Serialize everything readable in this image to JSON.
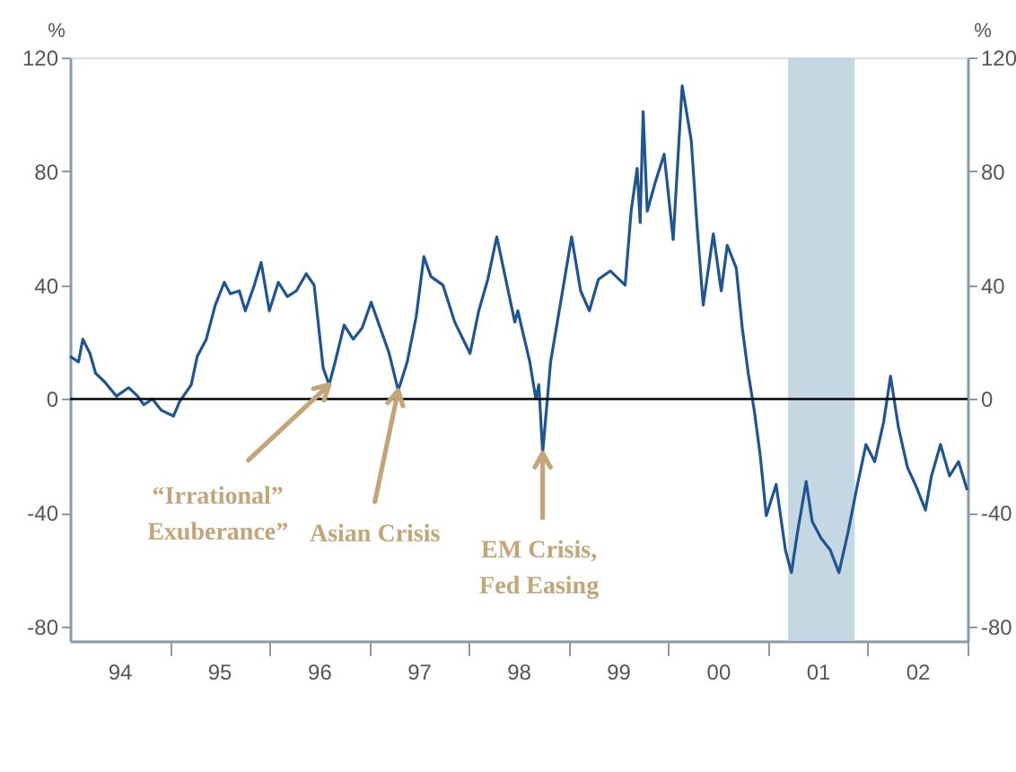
{
  "chart_data": {
    "type": "line",
    "ylabel": "%",
    "y2label": "%",
    "xlim": [
      "1994-01-01",
      "2003-01-01"
    ],
    "xticks": [
      {
        "value": "1994-07-01",
        "label": "94"
      },
      {
        "value": "1995-01-01",
        "label": null
      },
      {
        "value": "1995-07-01",
        "label": "95"
      },
      {
        "value": "1996-01-01",
        "label": null
      },
      {
        "value": "1996-07-01",
        "label": "96"
      },
      {
        "value": "1997-01-01",
        "label": null
      },
      {
        "value": "1997-07-01",
        "label": "97"
      },
      {
        "value": "1998-01-01",
        "label": null
      },
      {
        "value": "1998-07-01",
        "label": "98"
      },
      {
        "value": "1999-01-01",
        "label": null
      },
      {
        "value": "1999-07-01",
        "label": "99"
      },
      {
        "value": "2000-01-01",
        "label": null
      },
      {
        "value": "2000-07-01",
        "label": "00"
      },
      {
        "value": "2001-01-01",
        "label": null
      },
      {
        "value": "2001-07-01",
        "label": "01"
      },
      {
        "value": "2002-01-01",
        "label": null
      },
      {
        "value": "2002-07-01",
        "label": "02"
      },
      {
        "value": "2003-01-01",
        "label": null
      }
    ],
    "ylim": [
      -85,
      120
    ],
    "yticks": [
      -80,
      -40,
      0,
      40,
      80,
      120
    ],
    "y2lim": [
      -85,
      120
    ],
    "y2ticks": [
      -80,
      -40,
      0,
      40,
      80,
      120
    ],
    "grid": false,
    "series": [
      {
        "color": "#1f5591",
        "x": [
          "1994-01-01",
          "1994-02-01",
          "1994-02-17",
          "1994-03-15",
          "1994-04-05",
          "1994-05-08",
          "1994-06-20",
          "1994-08-04",
          "1994-09-06",
          "1994-09-28",
          "1994-10-30",
          "1994-12-02",
          "1995-01-15",
          "1995-02-06",
          "1995-03-21",
          "1995-04-12",
          "1995-05-15",
          "1995-06-17",
          "1995-07-20",
          "1995-08-11",
          "1995-09-13",
          "1995-10-05",
          "1995-11-07",
          "1995-12-02",
          "1996-01-01",
          "1996-02-03",
          "1996-03-07",
          "1996-04-09",
          "1996-05-15",
          "1996-06-13",
          "1996-07-16",
          "1996-08-07",
          "1996-08-29",
          "1996-10-01",
          "1996-11-03",
          "1996-12-06",
          "1997-01-08",
          "1997-02-10",
          "1997-03-15",
          "1997-04-17",
          "1997-05-20",
          "1997-06-22",
          "1997-07-20",
          "1997-08-15",
          "1997-09-28",
          "1997-11-10",
          "1998-01-05",
          "1998-02-06",
          "1998-03-11",
          "1998-04-13",
          "1998-05-16",
          "1998-06-18",
          "1998-06-29",
          "1998-08-12",
          "1998-09-03",
          "1998-09-14",
          "1998-09-28",
          "1998-10-27",
          "1998-12-10",
          "1999-01-12",
          "1999-02-14",
          "1999-03-18",
          "1999-04-20",
          "1999-06-03",
          "1999-07-27",
          "1999-08-18",
          "1999-09-09",
          "1999-09-20",
          "1999-10-01",
          "1999-10-16",
          "1999-11-14",
          "1999-12-17",
          "2000-01-19",
          "2000-02-21",
          "2000-03-25",
          "2000-04-16",
          "2000-05-08",
          "2000-06-14",
          "2000-07-13",
          "2000-08-04",
          "2000-09-06",
          "2000-09-28",
          "2000-10-20",
          "2000-11-11",
          "2000-12-03",
          "2000-12-25",
          "2001-01-30",
          "2001-03-05",
          "2001-03-27",
          "2001-04-18",
          "2001-05-20",
          "2001-06-11",
          "2001-07-14",
          "2001-08-16",
          "2001-09-17",
          "2001-10-20",
          "2001-11-22",
          "2001-12-25",
          "2002-01-26",
          "2002-02-28",
          "2002-03-25",
          "2002-04-23",
          "2002-05-26",
          "2002-06-28",
          "2002-07-31",
          "2002-08-22",
          "2002-09-24",
          "2002-10-27",
          "2002-11-29",
          "2002-12-31"
        ],
        "values": [
          15,
          13,
          21,
          16,
          9,
          6,
          1,
          4,
          1,
          -2,
          0,
          -4,
          -6,
          -1,
          5,
          15,
          21,
          33,
          41,
          37,
          38,
          31,
          40,
          48,
          31,
          41,
          36,
          38,
          44,
          40,
          11,
          5,
          13,
          26,
          21,
          25,
          34,
          25,
          16,
          3,
          13,
          29,
          50,
          43,
          40,
          27,
          16,
          31,
          42,
          57,
          42,
          27,
          31,
          13,
          0,
          5,
          -19,
          13,
          38,
          57,
          38,
          31,
          42,
          45,
          40,
          66,
          81,
          62,
          101,
          66,
          76,
          86,
          56,
          110,
          91,
          60,
          33,
          58,
          38,
          54,
          46,
          25,
          9,
          -4,
          -20,
          -41,
          -30,
          -53,
          -61,
          -47,
          -29,
          -43,
          -49,
          -53,
          -61,
          -47,
          -31,
          -16,
          -22,
          -8,
          8,
          -10,
          -24,
          -31,
          -39,
          -27,
          -16,
          -27,
          -22,
          -32
        ]
      }
    ],
    "ref_lines": [
      {
        "axis": "y",
        "value": 0,
        "color": "#000000",
        "line_style": "solid"
      }
    ],
    "bands": [
      {
        "axis": "x",
        "from": "2001-03-15",
        "to": "2001-11-14",
        "color": "#c5d7e3"
      }
    ],
    "annotations": [
      {
        "text": "“Irrational”\nExuberance”",
        "x": "1996-08-07",
        "y": 5
      },
      {
        "text": "Asian Crisis",
        "x": "1997-04-17",
        "y": 3
      },
      {
        "text": "EM Crisis,\nFed Easing",
        "x": "1998-09-28",
        "y": -19
      }
    ]
  }
}
